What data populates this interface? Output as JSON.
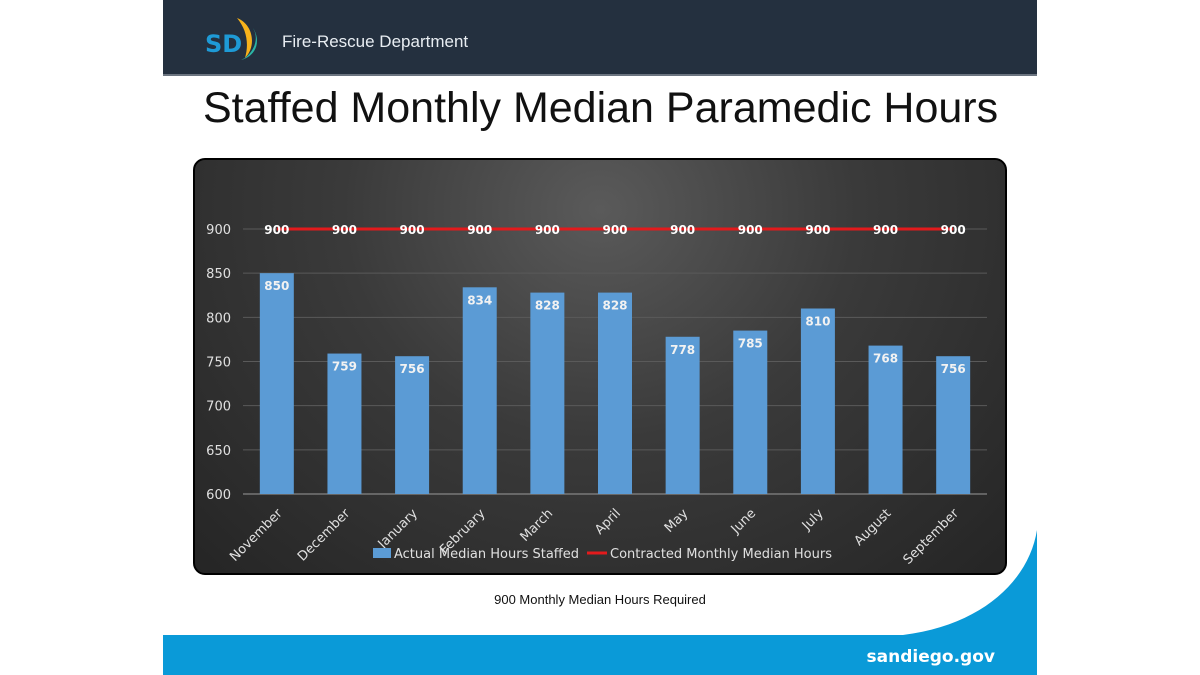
{
  "header": {
    "logo_text": "SD",
    "department": "Fire-Rescue Department"
  },
  "slide_title": "Staffed Monthly Median Paramedic Hours",
  "caption": "900 Monthly Median Hours Required",
  "footer": {
    "site": "sandiego.gov"
  },
  "colors": {
    "header": "#24303f",
    "bar": "#5b9bd5",
    "line": "#e31a1c",
    "footer": "#0a9ad8"
  },
  "chart_data": {
    "type": "bar",
    "categories": [
      "November",
      "December",
      "January",
      "February",
      "March",
      "April",
      "May",
      "June",
      "July",
      "August",
      "September"
    ],
    "series": [
      {
        "name": "Actual Median Hours Staffed",
        "type": "bar",
        "values": [
          850,
          759,
          756,
          834,
          828,
          828,
          778,
          785,
          810,
          768,
          756
        ]
      },
      {
        "name": "Contracted Monthly Median Hours",
        "type": "line",
        "values": [
          900,
          900,
          900,
          900,
          900,
          900,
          900,
          900,
          900,
          900,
          900
        ]
      }
    ],
    "ylim": [
      600,
      900
    ],
    "yticks": [
      600,
      650,
      700,
      750,
      800,
      850,
      900
    ],
    "grid": true,
    "legend": "bottom"
  }
}
